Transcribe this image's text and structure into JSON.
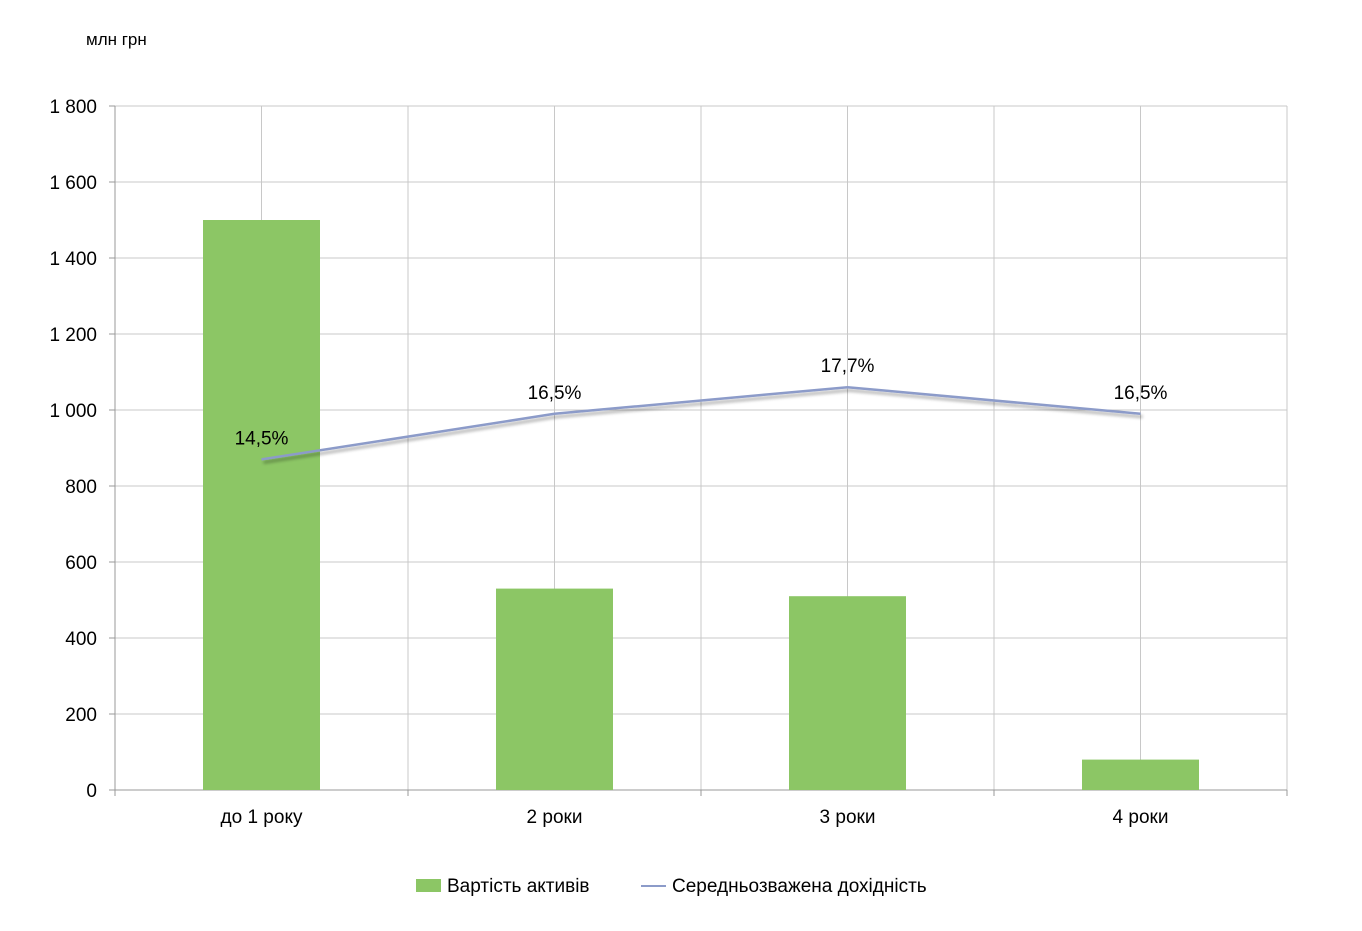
{
  "chart_data": {
    "type": "bar",
    "unit_label": "млн  грн",
    "categories": [
      "до 1 року",
      "2 роки",
      "3 роки",
      "4 роки"
    ],
    "ylim": [
      0,
      1800
    ],
    "yticks": [
      0,
      200,
      400,
      600,
      800,
      1000,
      1200,
      1400,
      1600,
      1800
    ],
    "ytick_labels": [
      "0",
      "200",
      "400",
      "600",
      "800",
      "1 000",
      "1 200",
      "1 400",
      "1 600",
      "1 800"
    ],
    "grid": true,
    "legend_position": "bottom",
    "series": [
      {
        "name": "Вартість активів",
        "type": "bar",
        "color": "#8cc665",
        "values": [
          1500,
          530,
          510,
          80
        ]
      },
      {
        "name": "Середньозважена дохідність",
        "type": "line",
        "color": "#8c9bc9",
        "values": [
          14.5,
          16.5,
          17.7,
          16.5
        ],
        "labels": [
          "14,5%",
          "16,5%",
          "17,7%",
          "16,5%"
        ],
        "plot_values": [
          870,
          990,
          1060,
          990
        ]
      }
    ]
  }
}
